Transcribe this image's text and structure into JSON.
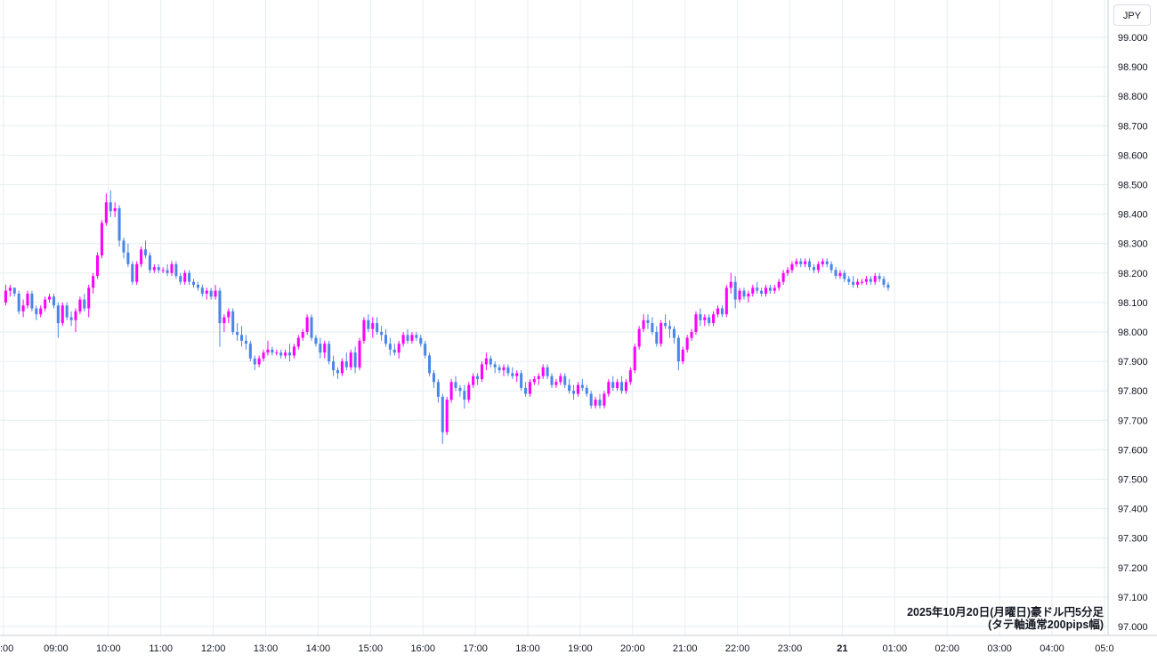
{
  "currency_label": "JPY",
  "caption": {
    "line1": "2025年10月20日(月曜日)豪ドル円5分足",
    "line2": "(タテ軸通常200pips幅)"
  },
  "colors": {
    "up": "#ff00ff",
    "down": "#4a86e8",
    "grid": "#e6eef0",
    "axis": "#131722"
  },
  "chart_data": {
    "type": "candlestick",
    "title": "",
    "xlabel": "",
    "ylabel": "",
    "ylim": [
      97.0,
      99.0
    ],
    "y_ticks": [
      "99.000",
      "98.900",
      "98.800",
      "98.700",
      "98.600",
      "98.500",
      "98.400",
      "98.300",
      "98.200",
      "98.100",
      "98.000",
      "97.900",
      "97.800",
      "97.700",
      "97.600",
      "97.500",
      "97.400",
      "97.300",
      "97.200",
      "97.100",
      "97.000"
    ],
    "x_ticks": [
      ":00",
      "09:00",
      "10:00",
      "11:00",
      "12:00",
      "13:00",
      "14:00",
      "15:00",
      "16:00",
      "17:00",
      "18:00",
      "19:00",
      "20:00",
      "21:00",
      "22:00",
      "23:00",
      "21",
      "01:00",
      "02:00",
      "03:00",
      "04:00",
      "05:0"
    ],
    "x_ticks_bold": [
      "21"
    ],
    "bars_per_hour": 12,
    "first_bar_time": "08:00",
    "ohlc": [
      [
        98.1,
        98.16,
        98.09,
        98.14
      ],
      [
        98.14,
        98.16,
        98.12,
        98.15
      ],
      [
        98.15,
        98.15,
        98.12,
        98.13
      ],
      [
        98.13,
        98.14,
        98.06,
        98.07
      ],
      [
        98.07,
        98.11,
        98.05,
        98.09
      ],
      [
        98.09,
        98.14,
        98.08,
        98.13
      ],
      [
        98.13,
        98.14,
        98.07,
        98.08
      ],
      [
        98.08,
        98.09,
        98.04,
        98.06
      ],
      [
        98.06,
        98.09,
        98.05,
        98.08
      ],
      [
        98.08,
        98.12,
        98.07,
        98.11
      ],
      [
        98.11,
        98.13,
        98.1,
        98.12
      ],
      [
        98.12,
        98.13,
        98.08,
        98.09
      ],
      [
        98.09,
        98.1,
        97.98,
        98.03
      ],
      [
        98.03,
        98.1,
        98.02,
        98.09
      ],
      [
        98.09,
        98.1,
        98.04,
        98.05
      ],
      [
        98.05,
        98.07,
        98.02,
        98.04
      ],
      [
        98.04,
        98.08,
        98.0,
        98.07
      ],
      [
        98.07,
        98.12,
        98.06,
        98.11
      ],
      [
        98.11,
        98.13,
        98.07,
        98.08
      ],
      [
        98.08,
        98.16,
        98.05,
        98.15
      ],
      [
        98.15,
        98.2,
        98.13,
        98.19
      ],
      [
        98.19,
        98.27,
        98.18,
        98.26
      ],
      [
        98.26,
        98.38,
        98.25,
        98.37
      ],
      [
        98.37,
        98.47,
        98.36,
        98.44
      ],
      [
        98.44,
        98.48,
        98.39,
        98.41
      ],
      [
        98.41,
        98.44,
        98.39,
        98.42
      ],
      [
        98.42,
        98.43,
        98.29,
        98.31
      ],
      [
        98.31,
        98.32,
        98.25,
        98.27
      ],
      [
        98.27,
        98.3,
        98.22,
        98.23
      ],
      [
        98.23,
        98.24,
        98.16,
        98.17
      ],
      [
        98.17,
        98.24,
        98.16,
        98.23
      ],
      [
        98.23,
        98.29,
        98.22,
        98.28
      ],
      [
        98.28,
        98.31,
        98.25,
        98.26
      ],
      [
        98.26,
        98.27,
        98.2,
        98.21
      ],
      [
        98.21,
        98.23,
        98.2,
        98.22
      ],
      [
        98.22,
        98.23,
        98.2,
        98.21
      ],
      [
        98.21,
        98.22,
        98.2,
        98.21
      ],
      [
        98.21,
        98.23,
        98.19,
        98.2
      ],
      [
        98.2,
        98.24,
        98.19,
        98.23
      ],
      [
        98.23,
        98.24,
        98.18,
        98.19
      ],
      [
        98.19,
        98.2,
        98.16,
        98.17
      ],
      [
        98.17,
        98.21,
        98.16,
        98.2
      ],
      [
        98.2,
        98.21,
        98.16,
        98.17
      ],
      [
        98.17,
        98.18,
        98.15,
        98.16
      ],
      [
        98.16,
        98.17,
        98.14,
        98.15
      ],
      [
        98.15,
        98.16,
        98.12,
        98.13
      ],
      [
        98.13,
        98.15,
        98.11,
        98.14
      ],
      [
        98.14,
        98.15,
        98.11,
        98.12
      ],
      [
        98.12,
        98.16,
        98.11,
        98.14
      ],
      [
        98.14,
        98.15,
        97.95,
        98.03
      ],
      [
        98.03,
        98.06,
        98.0,
        98.05
      ],
      [
        98.05,
        98.08,
        98.03,
        98.07
      ],
      [
        98.07,
        98.08,
        97.99,
        98.0
      ],
      [
        98.0,
        98.03,
        97.97,
        97.99
      ],
      [
        97.99,
        98.02,
        97.95,
        97.97
      ],
      [
        97.97,
        97.99,
        97.94,
        97.96
      ],
      [
        97.96,
        97.97,
        97.9,
        97.91
      ],
      [
        97.91,
        97.92,
        97.87,
        97.89
      ],
      [
        97.89,
        97.92,
        97.88,
        97.91
      ],
      [
        97.91,
        97.94,
        97.9,
        97.93
      ],
      [
        97.93,
        97.97,
        97.92,
        97.94
      ],
      [
        97.94,
        97.95,
        97.92,
        97.93
      ],
      [
        97.93,
        97.94,
        97.92,
        97.93
      ],
      [
        97.93,
        97.94,
        97.91,
        97.92
      ],
      [
        97.92,
        97.94,
        97.91,
        97.93
      ],
      [
        97.93,
        97.96,
        97.9,
        97.92
      ],
      [
        97.92,
        97.96,
        97.91,
        97.95
      ],
      [
        97.95,
        97.99,
        97.94,
        97.98
      ],
      [
        97.98,
        98.01,
        97.97,
        98.0
      ],
      [
        98.0,
        98.06,
        97.99,
        98.05
      ],
      [
        98.05,
        98.06,
        97.97,
        97.98
      ],
      [
        97.98,
        97.99,
        97.95,
        97.96
      ],
      [
        97.96,
        97.98,
        97.91,
        97.93
      ],
      [
        97.93,
        97.97,
        97.91,
        97.96
      ],
      [
        97.96,
        97.97,
        97.89,
        97.9
      ],
      [
        97.9,
        97.92,
        97.85,
        97.87
      ],
      [
        97.87,
        97.88,
        97.84,
        97.86
      ],
      [
        97.86,
        97.91,
        97.85,
        97.9
      ],
      [
        97.9,
        97.93,
        97.87,
        97.88
      ],
      [
        97.88,
        97.94,
        97.87,
        97.93
      ],
      [
        97.93,
        97.95,
        97.86,
        97.88
      ],
      [
        97.88,
        97.98,
        97.87,
        97.97
      ],
      [
        97.97,
        98.05,
        97.96,
        98.04
      ],
      [
        98.04,
        98.06,
        98.0,
        98.01
      ],
      [
        98.01,
        98.05,
        97.98,
        98.03
      ],
      [
        98.03,
        98.05,
        97.99,
        98.0
      ],
      [
        98.0,
        98.02,
        97.97,
        97.99
      ],
      [
        97.99,
        98.01,
        97.95,
        97.96
      ],
      [
        97.96,
        97.98,
        97.92,
        97.94
      ],
      [
        97.94,
        97.96,
        97.92,
        97.93
      ],
      [
        97.93,
        97.97,
        97.91,
        97.96
      ],
      [
        97.96,
        98.0,
        97.95,
        97.99
      ],
      [
        97.99,
        98.01,
        97.96,
        97.97
      ],
      [
        97.97,
        98.0,
        97.96,
        97.99
      ],
      [
        97.99,
        98.0,
        97.97,
        97.98
      ],
      [
        97.98,
        97.99,
        97.95,
        97.96
      ],
      [
        97.96,
        97.97,
        97.91,
        97.92
      ],
      [
        97.92,
        97.93,
        97.85,
        97.86
      ],
      [
        97.86,
        97.87,
        97.81,
        97.83
      ],
      [
        97.83,
        97.84,
        97.76,
        97.78
      ],
      [
        97.78,
        97.79,
        97.62,
        97.66
      ],
      [
        97.66,
        97.78,
        97.65,
        97.77
      ],
      [
        97.77,
        97.84,
        97.76,
        97.83
      ],
      [
        97.83,
        97.85,
        97.8,
        97.81
      ],
      [
        97.81,
        97.82,
        97.78,
        97.8
      ],
      [
        97.8,
        97.82,
        97.74,
        97.77
      ],
      [
        97.77,
        97.83,
        97.76,
        97.82
      ],
      [
        97.82,
        97.86,
        97.81,
        97.85
      ],
      [
        97.85,
        97.86,
        97.82,
        97.84
      ],
      [
        97.84,
        97.9,
        97.83,
        97.89
      ],
      [
        97.89,
        97.93,
        97.87,
        97.91
      ],
      [
        97.91,
        97.92,
        97.88,
        97.89
      ],
      [
        97.89,
        97.9,
        97.86,
        97.88
      ],
      [
        97.88,
        97.89,
        97.86,
        97.87
      ],
      [
        97.87,
        97.89,
        97.85,
        97.88
      ],
      [
        97.88,
        97.89,
        97.85,
        97.86
      ],
      [
        97.86,
        97.88,
        97.84,
        97.85
      ],
      [
        97.85,
        97.87,
        97.83,
        97.86
      ],
      [
        97.86,
        97.87,
        97.8,
        97.81
      ],
      [
        97.81,
        97.83,
        97.78,
        97.79
      ],
      [
        97.79,
        97.84,
        97.78,
        97.83
      ],
      [
        97.83,
        97.85,
        97.82,
        97.84
      ],
      [
        97.84,
        97.86,
        97.82,
        97.85
      ],
      [
        97.85,
        97.89,
        97.84,
        97.88
      ],
      [
        97.88,
        97.89,
        97.84,
        97.85
      ],
      [
        97.85,
        97.86,
        97.81,
        97.82
      ],
      [
        97.82,
        97.84,
        97.81,
        97.83
      ],
      [
        97.83,
        97.86,
        97.82,
        97.85
      ],
      [
        97.85,
        97.86,
        97.81,
        97.82
      ],
      [
        97.82,
        97.84,
        97.79,
        97.8
      ],
      [
        97.8,
        97.82,
        97.77,
        97.79
      ],
      [
        97.79,
        97.83,
        97.78,
        97.82
      ],
      [
        97.82,
        97.84,
        97.8,
        97.81
      ],
      [
        97.81,
        97.82,
        97.78,
        97.79
      ],
      [
        97.79,
        97.8,
        97.74,
        97.75
      ],
      [
        97.75,
        97.78,
        97.74,
        97.77
      ],
      [
        97.77,
        97.79,
        97.74,
        97.75
      ],
      [
        97.75,
        97.8,
        97.74,
        97.79
      ],
      [
        97.79,
        97.84,
        97.78,
        97.83
      ],
      [
        97.83,
        97.85,
        97.8,
        97.81
      ],
      [
        97.81,
        97.84,
        97.8,
        97.83
      ],
      [
        97.83,
        97.85,
        97.79,
        97.8
      ],
      [
        97.8,
        97.84,
        97.79,
        97.83
      ],
      [
        97.83,
        97.88,
        97.82,
        97.87
      ],
      [
        97.87,
        97.96,
        97.86,
        97.95
      ],
      [
        97.95,
        98.02,
        97.94,
        98.01
      ],
      [
        98.01,
        98.06,
        98.0,
        98.04
      ],
      [
        98.04,
        98.06,
        98.01,
        98.03
      ],
      [
        98.03,
        98.05,
        97.99,
        98.0
      ],
      [
        98.0,
        98.02,
        97.95,
        97.96
      ],
      [
        97.96,
        98.04,
        97.95,
        98.03
      ],
      [
        98.03,
        98.06,
        98.01,
        98.02
      ],
      [
        98.02,
        98.04,
        97.98,
        98.01
      ],
      [
        98.01,
        98.02,
        97.96,
        97.98
      ],
      [
        97.98,
        97.99,
        97.87,
        97.9
      ],
      [
        97.9,
        97.95,
        97.89,
        97.94
      ],
      [
        97.94,
        97.99,
        97.93,
        97.98
      ],
      [
        97.98,
        98.01,
        97.97,
        98.0
      ],
      [
        98.0,
        98.07,
        97.99,
        98.06
      ],
      [
        98.06,
        98.08,
        98.02,
        98.04
      ],
      [
        98.04,
        98.06,
        98.02,
        98.05
      ],
      [
        98.05,
        98.06,
        98.02,
        98.03
      ],
      [
        98.03,
        98.07,
        98.02,
        98.06
      ],
      [
        98.06,
        98.09,
        98.05,
        98.08
      ],
      [
        98.08,
        98.09,
        98.05,
        98.06
      ],
      [
        98.06,
        98.16,
        98.05,
        98.15
      ],
      [
        98.15,
        98.2,
        98.13,
        98.17
      ],
      [
        98.17,
        98.19,
        98.08,
        98.11
      ],
      [
        98.11,
        98.15,
        98.1,
        98.14
      ],
      [
        98.14,
        98.15,
        98.11,
        98.12
      ],
      [
        98.12,
        98.14,
        98.1,
        98.13
      ],
      [
        98.13,
        98.16,
        98.12,
        98.15
      ],
      [
        98.15,
        98.17,
        98.13,
        98.14
      ],
      [
        98.14,
        98.15,
        98.12,
        98.13
      ],
      [
        98.13,
        98.16,
        98.12,
        98.15
      ],
      [
        98.15,
        98.16,
        98.13,
        98.14
      ],
      [
        98.14,
        98.16,
        98.13,
        98.15
      ],
      [
        98.15,
        98.18,
        98.14,
        98.17
      ],
      [
        98.17,
        98.21,
        98.16,
        98.2
      ],
      [
        98.2,
        98.22,
        98.19,
        98.21
      ],
      [
        98.21,
        98.24,
        98.2,
        98.23
      ],
      [
        98.23,
        98.25,
        98.22,
        98.24
      ],
      [
        98.24,
        98.25,
        98.22,
        98.23
      ],
      [
        98.23,
        98.25,
        98.22,
        98.24
      ],
      [
        98.24,
        98.25,
        98.21,
        98.22
      ],
      [
        98.22,
        98.23,
        98.2,
        98.21
      ],
      [
        98.21,
        98.24,
        98.2,
        98.23
      ],
      [
        98.23,
        98.25,
        98.22,
        98.24
      ],
      [
        98.24,
        98.25,
        98.22,
        98.23
      ],
      [
        98.23,
        98.24,
        98.2,
        98.21
      ],
      [
        98.21,
        98.22,
        98.18,
        98.19
      ],
      [
        98.19,
        98.21,
        98.18,
        98.2
      ],
      [
        98.2,
        98.21,
        98.17,
        98.18
      ],
      [
        98.18,
        98.19,
        98.16,
        98.17
      ],
      [
        98.17,
        98.19,
        98.15,
        98.16
      ],
      [
        98.16,
        98.18,
        98.15,
        98.17
      ],
      [
        98.17,
        98.18,
        98.16,
        98.17
      ],
      [
        98.17,
        98.19,
        98.16,
        98.18
      ],
      [
        98.18,
        98.19,
        98.16,
        98.17
      ],
      [
        98.17,
        98.2,
        98.16,
        98.19
      ],
      [
        98.19,
        98.2,
        98.17,
        98.18
      ],
      [
        98.18,
        98.19,
        98.15,
        98.16
      ],
      [
        98.16,
        98.17,
        98.14,
        98.15
      ]
    ]
  }
}
